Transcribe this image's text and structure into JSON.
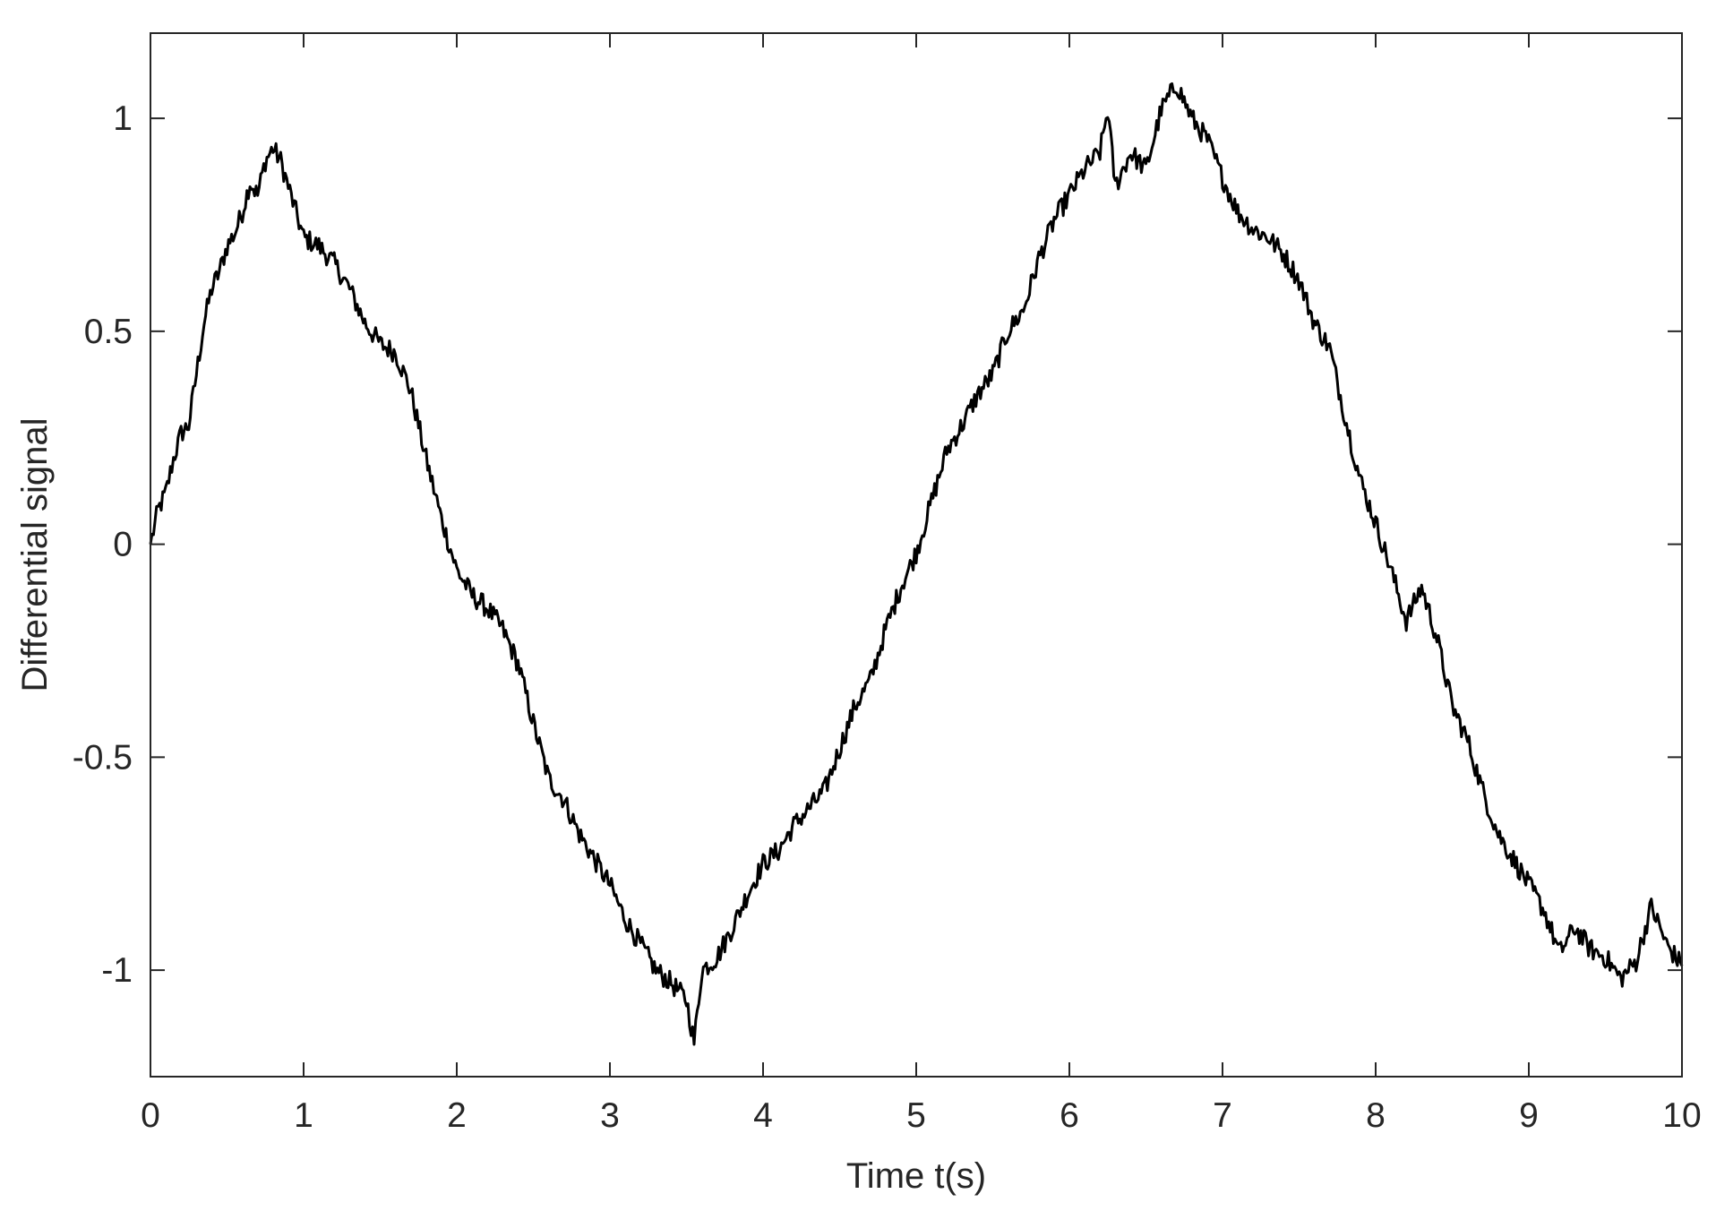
{
  "chart_data": {
    "type": "line",
    "title": "",
    "xlabel": "Time t(s)",
    "ylabel": "Differential signal",
    "xlim": [
      0,
      10
    ],
    "ylim": [
      -1.25,
      1.2
    ],
    "xticks": [
      0,
      1,
      2,
      3,
      4,
      5,
      6,
      7,
      8,
      9,
      10
    ],
    "yticks": [
      -1,
      -0.5,
      0,
      0.5,
      1
    ],
    "xtick_labels": [
      "0",
      "1",
      "2",
      "3",
      "4",
      "5",
      "6",
      "7",
      "8",
      "9",
      "10"
    ],
    "ytick_labels": [
      "-1",
      "-0.5",
      "0",
      "0.5",
      "1"
    ],
    "grid": false,
    "legend": "none",
    "colors": {
      "line": "#000000",
      "axes": "#262626",
      "background": "#ffffff"
    },
    "series": [
      {
        "x": [
          0,
          0.05,
          0.1,
          0.15,
          0.2,
          0.25,
          0.3,
          0.35,
          0.4,
          0.45,
          0.5,
          0.55,
          0.6,
          0.65,
          0.7,
          0.75,
          0.8,
          0.85,
          0.9,
          0.95,
          1.0,
          1.1,
          1.2,
          1.3,
          1.4,
          1.5,
          1.6,
          1.7,
          1.8,
          1.9,
          2.0,
          2.1,
          2.2,
          2.3,
          2.4,
          2.5,
          2.6,
          2.7,
          2.8,
          2.9,
          3.0,
          3.1,
          3.2,
          3.3,
          3.4,
          3.5,
          3.55,
          3.6,
          3.7,
          3.8,
          3.9,
          4.0,
          4.1,
          4.2,
          4.3,
          4.4,
          4.5,
          4.6,
          4.7,
          4.8,
          4.9,
          5.0,
          5.1,
          5.2,
          5.3,
          5.4,
          5.5,
          5.6,
          5.7,
          5.8,
          5.9,
          6.0,
          6.1,
          6.2,
          6.25,
          6.3,
          6.4,
          6.5,
          6.6,
          6.7,
          6.8,
          6.9,
          7.0,
          7.1,
          7.2,
          7.3,
          7.4,
          7.5,
          7.6,
          7.7,
          7.8,
          7.9,
          8.0,
          8.1,
          8.2,
          8.3,
          8.4,
          8.5,
          8.6,
          8.7,
          8.8,
          8.9,
          9.0,
          9.1,
          9.2,
          9.3,
          9.4,
          9.5,
          9.6,
          9.7,
          9.8,
          9.9,
          10.0
        ],
        "y": [
          0.0,
          0.08,
          0.12,
          0.2,
          0.26,
          0.28,
          0.4,
          0.52,
          0.6,
          0.64,
          0.7,
          0.73,
          0.78,
          0.85,
          0.82,
          0.9,
          0.93,
          0.9,
          0.84,
          0.78,
          0.72,
          0.7,
          0.66,
          0.6,
          0.52,
          0.47,
          0.45,
          0.36,
          0.2,
          0.06,
          -0.06,
          -0.12,
          -0.15,
          -0.2,
          -0.28,
          -0.42,
          -0.55,
          -0.6,
          -0.68,
          -0.74,
          -0.8,
          -0.88,
          -0.94,
          -1.0,
          -1.03,
          -1.07,
          -1.17,
          -1.0,
          -0.97,
          -0.9,
          -0.82,
          -0.75,
          -0.72,
          -0.66,
          -0.62,
          -0.58,
          -0.48,
          -0.38,
          -0.32,
          -0.2,
          -0.1,
          -0.02,
          0.1,
          0.22,
          0.28,
          0.35,
          0.4,
          0.5,
          0.55,
          0.67,
          0.76,
          0.82,
          0.88,
          0.92,
          1.02,
          0.84,
          0.92,
          0.88,
          1.02,
          1.08,
          1.0,
          0.95,
          0.86,
          0.78,
          0.74,
          0.72,
          0.68,
          0.62,
          0.52,
          0.46,
          0.3,
          0.15,
          0.05,
          -0.06,
          -0.18,
          -0.1,
          -0.22,
          -0.38,
          -0.46,
          -0.58,
          -0.68,
          -0.74,
          -0.8,
          -0.86,
          -0.96,
          -0.9,
          -0.95,
          -0.97,
          -1.02,
          -0.98,
          -0.85,
          -0.94,
          -0.99
        ]
      }
    ]
  }
}
